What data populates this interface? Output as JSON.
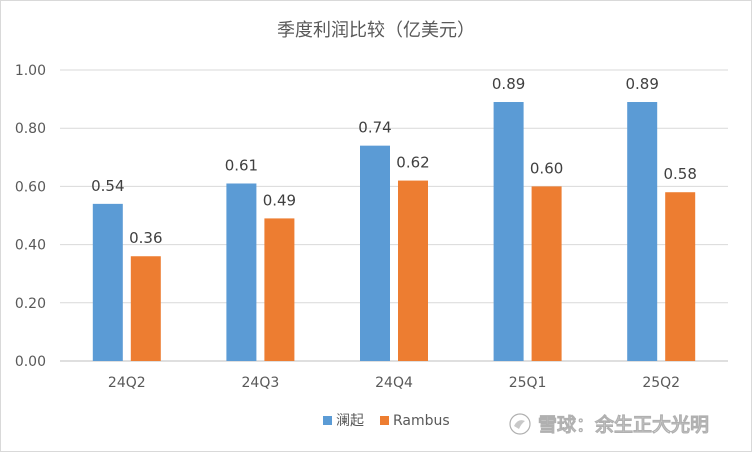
{
  "chart_data": {
    "type": "bar",
    "title": "季度利润比较（亿美元）",
    "categories": [
      "24Q2",
      "24Q3",
      "24Q4",
      "25Q1",
      "25Q2"
    ],
    "series": [
      {
        "name": "澜起",
        "values": [
          0.54,
          0.61,
          0.74,
          0.89,
          0.89
        ],
        "color": "#5b9bd5"
      },
      {
        "name": "Rambus",
        "values": [
          0.36,
          0.49,
          0.62,
          0.6,
          0.58
        ],
        "color": "#ed7d31"
      }
    ],
    "yticks": [
      "0.00",
      "0.20",
      "0.40",
      "0.60",
      "0.80",
      "1.00"
    ],
    "ylim": [
      0,
      1.0
    ],
    "grid": true,
    "legend_position": "bottom"
  },
  "watermark": {
    "text": "雪球：余生正大光明",
    "icon": "snowball-logo-icon"
  }
}
